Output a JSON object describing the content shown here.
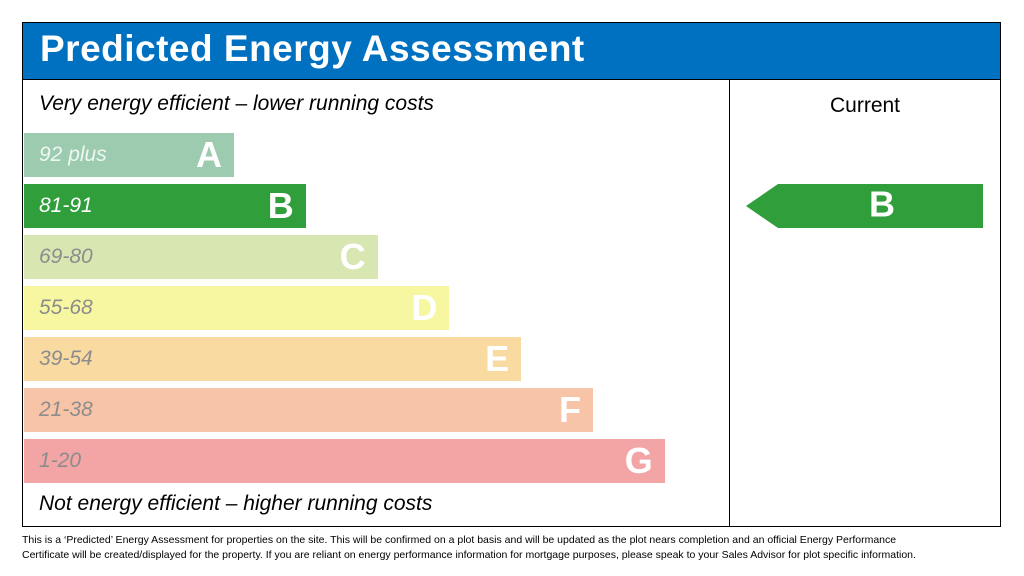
{
  "header": {
    "title": "Predicted Energy Assessment"
  },
  "scale": {
    "top_label": "Very energy efficient – lower running costs",
    "bottom_label": "Not energy efficient – higher running costs",
    "bands": [
      {
        "range": "92 plus",
        "letter": "A",
        "color": "#9ccbb0"
      },
      {
        "range": "81-91",
        "letter": "B",
        "color": "#2f9e3b"
      },
      {
        "range": "69-80",
        "letter": "C",
        "color": "#d8e7b2"
      },
      {
        "range": "55-68",
        "letter": "D",
        "color": "#f8f7a1"
      },
      {
        "range": "39-54",
        "letter": "E",
        "color": "#f9dba2"
      },
      {
        "range": "21-38",
        "letter": "F",
        "color": "#f7c4a8"
      },
      {
        "range": "1-20",
        "letter": "G",
        "color": "#f3a4a5"
      }
    ]
  },
  "current": {
    "heading": "Current",
    "rating": "B",
    "color": "#2f9e3b"
  },
  "footnote": {
    "lines": [
      "This is a ‘Predicted’ Energy Assessment for properties on the site. This will be confirmed on a plot basis and will be updated as the plot nears completion and an official Energy Performance",
      "Certificate will be created/displayed for the property. If you are reliant on energy performance information for mortgage purposes, please speak to your Sales Advisor for plot specific information."
    ]
  }
}
